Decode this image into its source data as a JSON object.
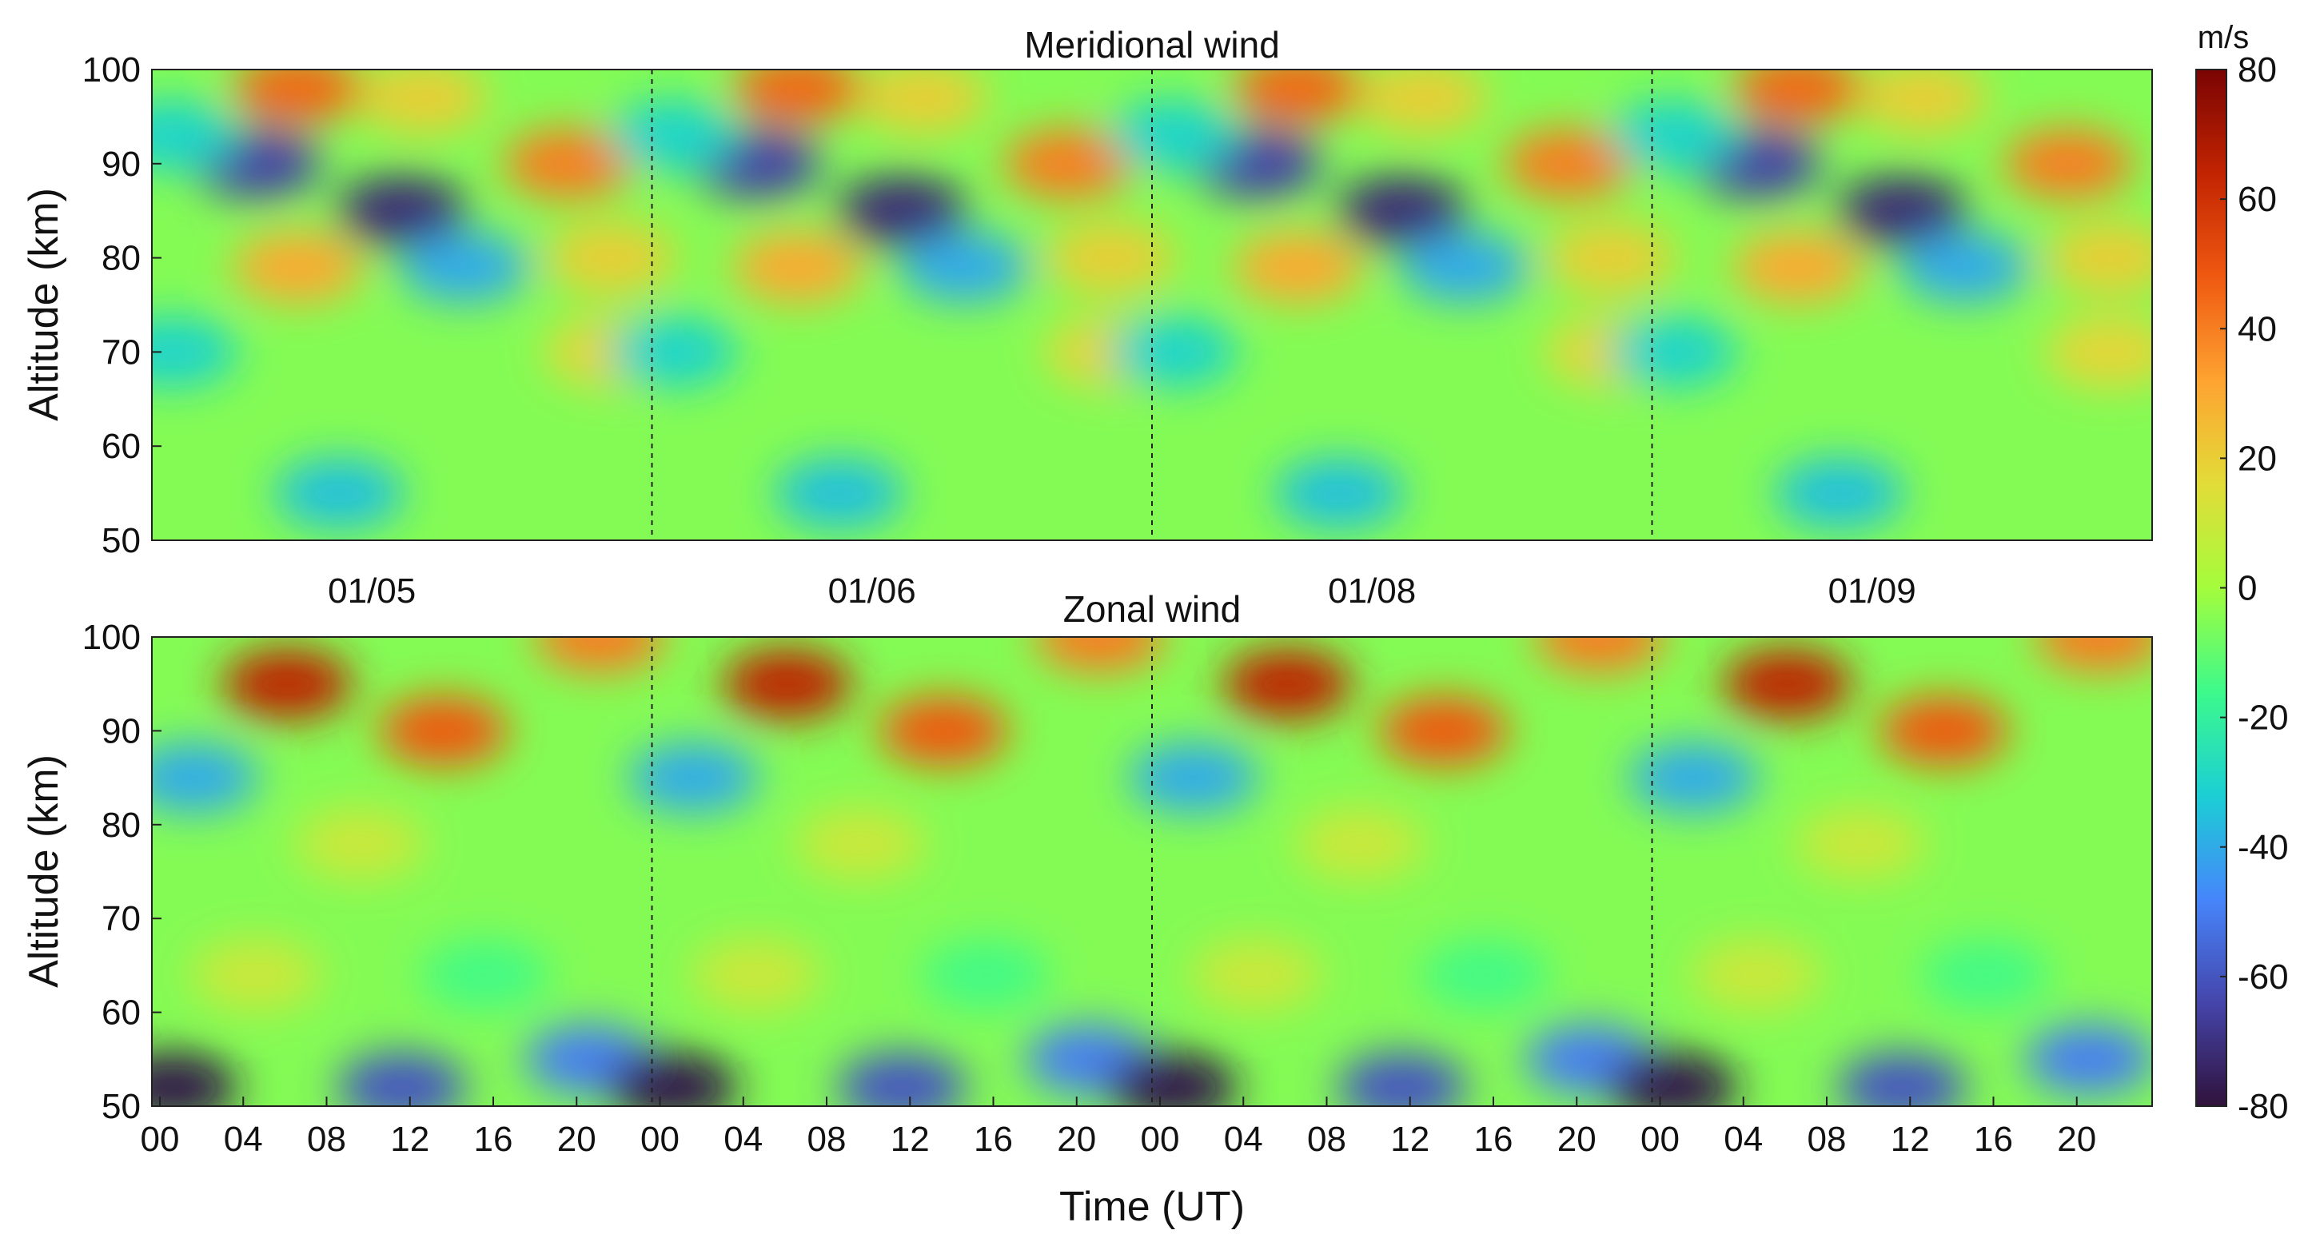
{
  "chart_data": [
    {
      "type": "heatmap",
      "title": "Meridional wind",
      "xlabel": "",
      "ylabel": "Altitude (km)",
      "ylim": [
        50,
        100
      ],
      "y_ticks": [
        "100",
        "90",
        "80",
        "70",
        "60",
        "50"
      ],
      "x_ticks": [],
      "days": [
        "01/05",
        "01/06",
        "01/08",
        "01/09"
      ],
      "x_range_hours_per_day": [
        0,
        23
      ],
      "features": [
        {
          "hour": 7,
          "alt": 98,
          "value": 45
        },
        {
          "hour": 13,
          "alt": 97,
          "value": 20
        },
        {
          "hour": 20,
          "alt": 90,
          "value": 40
        },
        {
          "hour": 5,
          "alt": 90,
          "value": -65
        },
        {
          "hour": 12,
          "alt": 85,
          "value": -72
        },
        {
          "hour": 1,
          "alt": 93,
          "value": -30
        },
        {
          "hour": 7,
          "alt": 79,
          "value": 30
        },
        {
          "hour": 15,
          "alt": 79,
          "value": -40
        },
        {
          "hour": 22,
          "alt": 80,
          "value": 20
        },
        {
          "hour": 22,
          "alt": 70,
          "value": 18
        },
        {
          "hour": 1,
          "alt": 70,
          "value": -30
        },
        {
          "hour": 9,
          "alt": 55,
          "value": -35
        }
      ]
    },
    {
      "type": "heatmap",
      "title": "Zonal wind",
      "xlabel": "Time (UT)",
      "ylabel": "Altitude (km)",
      "ylim": [
        50,
        100
      ],
      "y_ticks": [
        "100",
        "90",
        "80",
        "70",
        "60",
        "50"
      ],
      "x_ticks": [
        "00",
        "04",
        "08",
        "12",
        "16",
        "20"
      ],
      "days": [
        "01/05",
        "01/06",
        "01/08",
        "01/09"
      ],
      "x_range_hours_per_day": [
        0,
        23
      ],
      "features": [
        {
          "hour": 6.5,
          "alt": 95,
          "value": 65
        },
        {
          "hour": 14,
          "alt": 90,
          "value": 48
        },
        {
          "hour": 21.5,
          "alt": 100,
          "value": 40
        },
        {
          "hour": 2,
          "alt": 85,
          "value": -40
        },
        {
          "hour": 10,
          "alt": 78,
          "value": 10
        },
        {
          "hour": 5,
          "alt": 64,
          "value": 10
        },
        {
          "hour": 16,
          "alt": 64,
          "value": -15
        },
        {
          "hour": 1,
          "alt": 52,
          "value": -78
        },
        {
          "hour": 12,
          "alt": 52,
          "value": -60
        },
        {
          "hour": 21,
          "alt": 55,
          "value": -50
        }
      ]
    }
  ],
  "colorbar": {
    "unit": "m/s",
    "min": -80,
    "max": 80,
    "ticks": [
      "80",
      "60",
      "40",
      "20",
      "0",
      "-20",
      "-40",
      "-60",
      "-80"
    ]
  }
}
